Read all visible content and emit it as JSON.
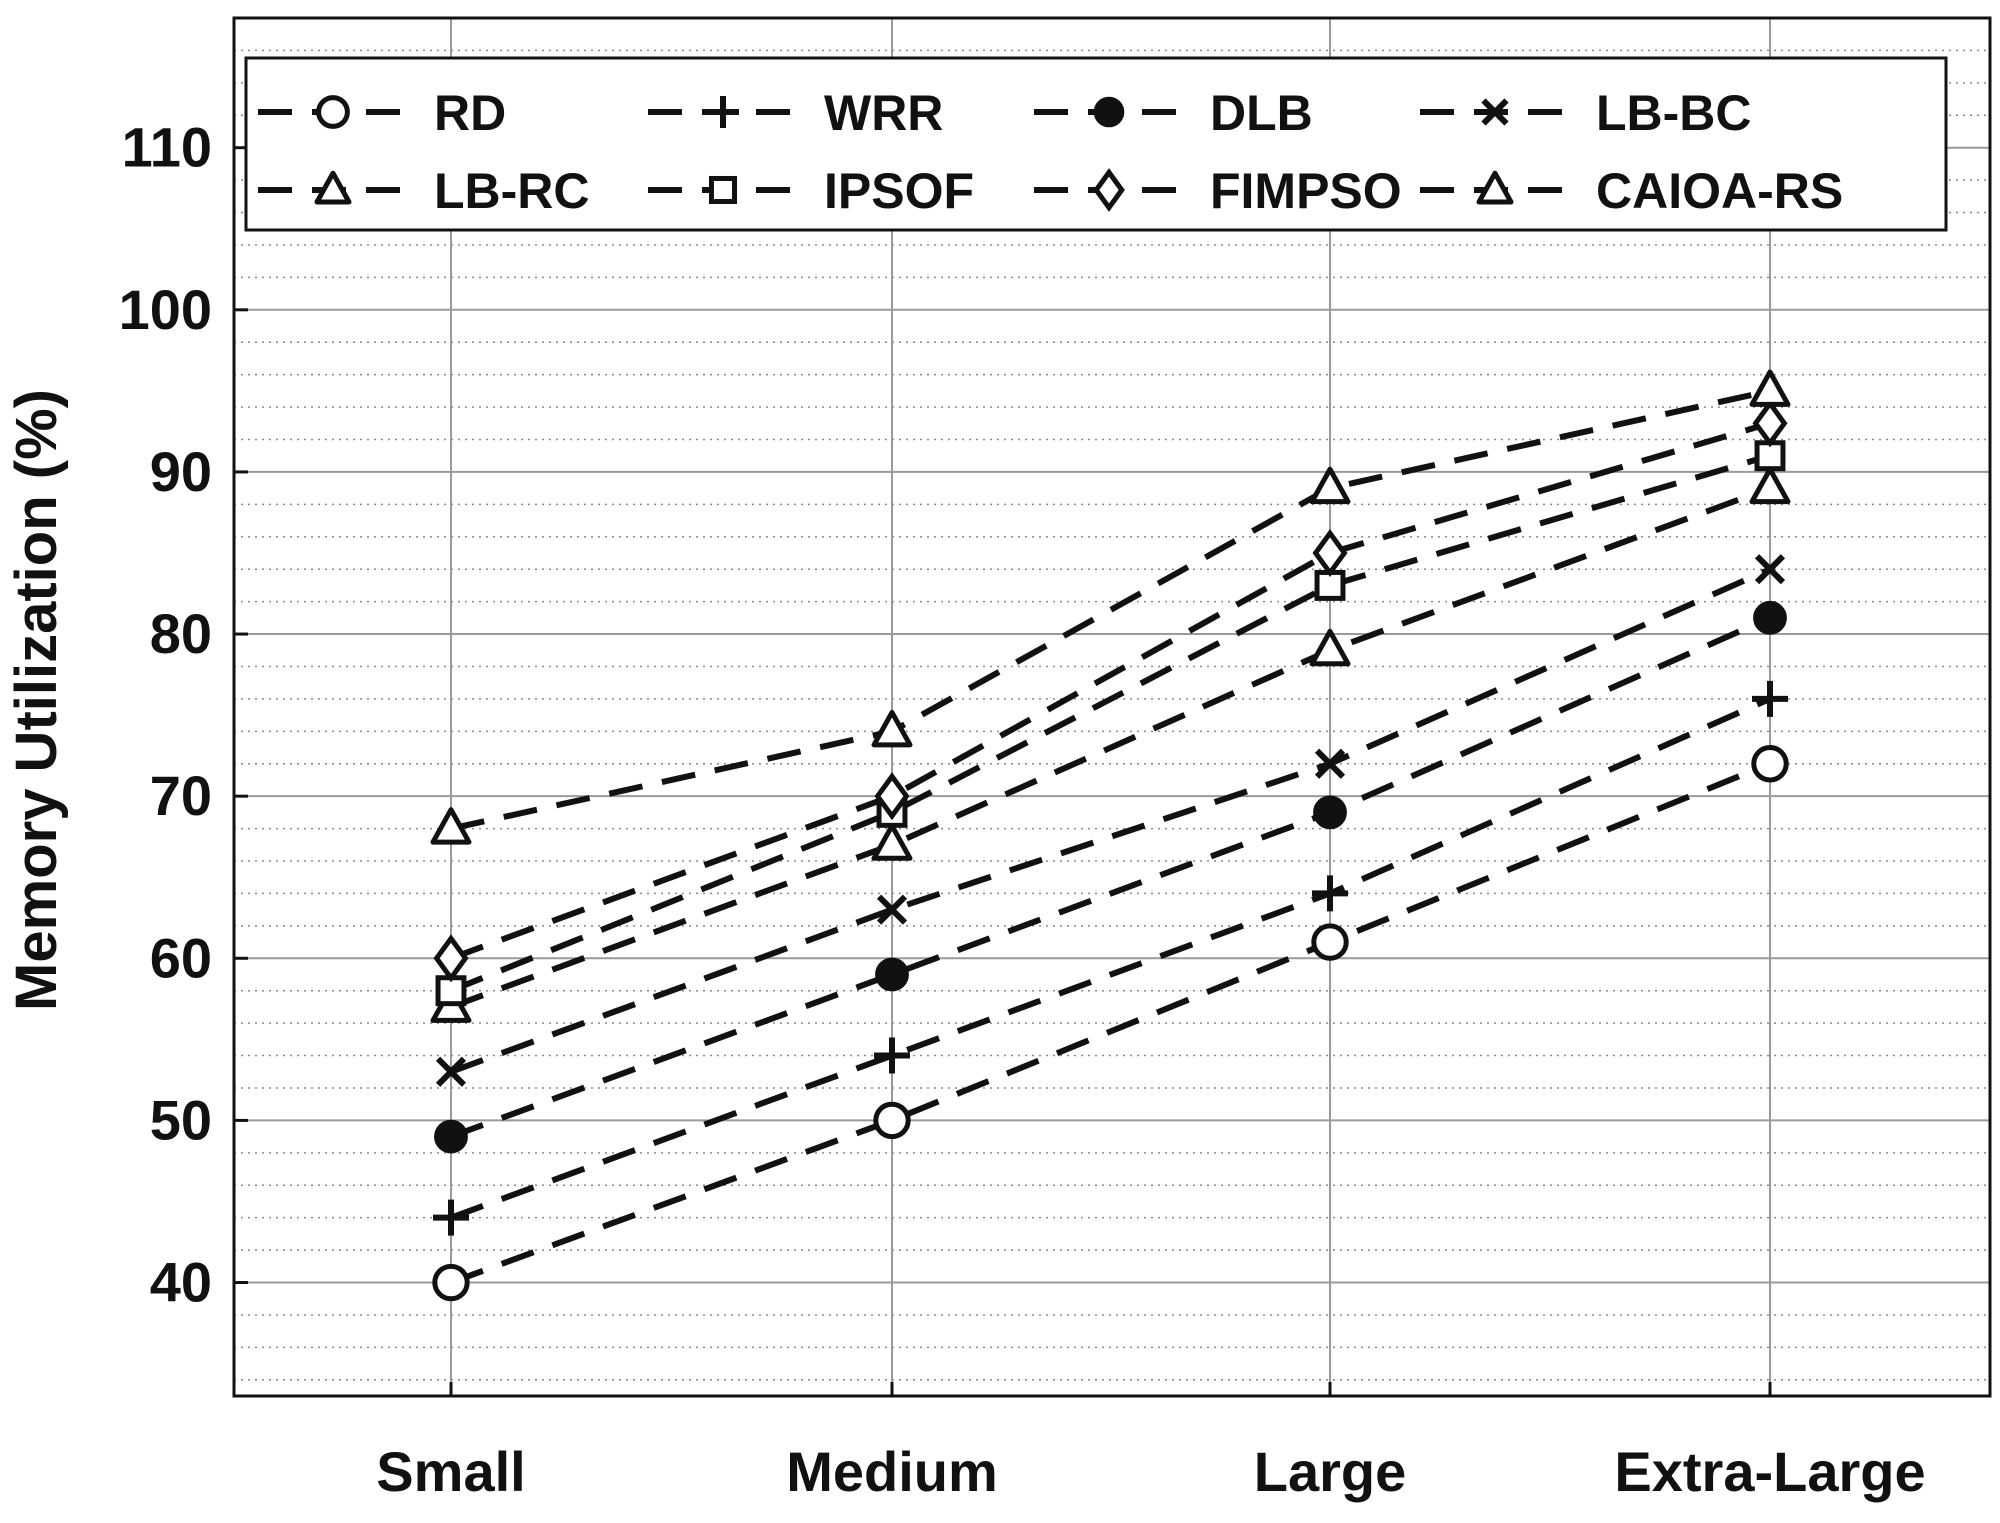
{
  "chart_data": {
    "type": "line",
    "title": "",
    "xlabel": "",
    "ylabel": "Memory Utilization (%)",
    "categories": [
      "Small",
      "Medium",
      "Large",
      "Extra-Large"
    ],
    "ylim": [
      33,
      118
    ],
    "yticks": [
      40,
      50,
      60,
      70,
      80,
      90,
      100,
      110
    ],
    "ytick_labels": [
      "40",
      "50",
      "60",
      "70",
      "80",
      "90",
      "100",
      "110"
    ],
    "grid": true,
    "minor_grid": true,
    "legend": {
      "placement": "top",
      "columns": 4
    },
    "line_style": "dashed",
    "line_color": "#111111",
    "series": [
      {
        "name": "RD",
        "marker": "circle-open",
        "values": [
          40,
          50,
          61,
          72
        ]
      },
      {
        "name": "WRR",
        "marker": "plus",
        "values": [
          44,
          54,
          64,
          76
        ]
      },
      {
        "name": "DLB",
        "marker": "circle-filled",
        "values": [
          49,
          59,
          69,
          81
        ]
      },
      {
        "name": "LB-BC",
        "marker": "x",
        "values": [
          53,
          63,
          72,
          84
        ]
      },
      {
        "name": "LB-RC",
        "marker": "triangle-open",
        "values": [
          57,
          67,
          79,
          89
        ]
      },
      {
        "name": "IPSOF",
        "marker": "square-open",
        "values": [
          58,
          69,
          83,
          91
        ]
      },
      {
        "name": "FIMPSO",
        "marker": "diamond-open",
        "values": [
          60,
          70,
          85,
          93
        ]
      },
      {
        "name": "CAIOA-RS",
        "marker": "triangle-open",
        "values": [
          68,
          74,
          89,
          95
        ]
      }
    ]
  }
}
